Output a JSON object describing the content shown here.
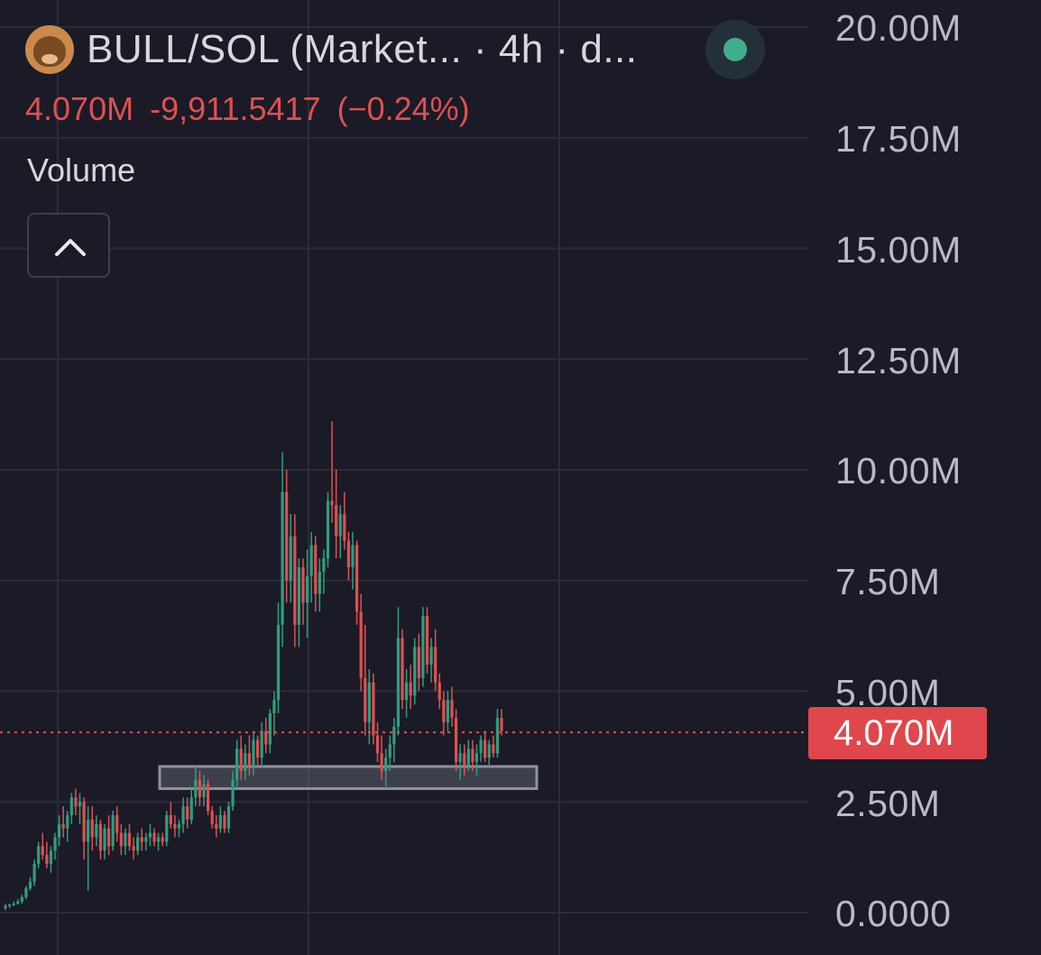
{
  "header": {
    "title": "BULL/SOL (Market... · 4h · d...",
    "logo_icon": "bull-logo-icon",
    "status_color": "#3fae8a"
  },
  "price": {
    "current": "4.070M",
    "change": "-9,911.5417",
    "change_pct": "(−0.24%)",
    "color": "#e04f52"
  },
  "indicator": {
    "label": "Volume",
    "collapse_icon": "chevron-up-icon"
  },
  "last_price_tag": "4.070M",
  "chart_data": {
    "type": "candlestick",
    "interval": "4h",
    "ylim": [
      0,
      20000000
    ],
    "y_ticks": [
      "20.00M",
      "17.50M",
      "15.00M",
      "12.50M",
      "10.00M",
      "7.50M",
      "5.00M",
      "2.50M",
      "0.0000"
    ],
    "last_price": 4070000,
    "colors": {
      "up": "#2e9e7f",
      "down": "#e04f52",
      "grid": "#2a2c38"
    },
    "annotation": {
      "type": "rectangle",
      "low": 2800000,
      "high": 3300000
    },
    "ohlc": [
      [
        0.1,
        0.2,
        0.05,
        0.15
      ],
      [
        0.15,
        0.2,
        0.1,
        0.18
      ],
      [
        0.18,
        0.25,
        0.15,
        0.2
      ],
      [
        0.2,
        0.3,
        0.18,
        0.25
      ],
      [
        0.25,
        0.4,
        0.2,
        0.35
      ],
      [
        0.35,
        0.6,
        0.3,
        0.55
      ],
      [
        0.55,
        0.8,
        0.5,
        0.7
      ],
      [
        0.7,
        1.2,
        0.6,
        1.1
      ],
      [
        1.1,
        1.6,
        1.0,
        1.5
      ],
      [
        1.5,
        1.8,
        1.2,
        1.3
      ],
      [
        1.3,
        1.6,
        1.0,
        1.1
      ],
      [
        1.1,
        1.5,
        0.9,
        1.4
      ],
      [
        1.4,
        1.8,
        1.2,
        1.7
      ],
      [
        1.7,
        2.2,
        1.5,
        2.0
      ],
      [
        2.0,
        2.4,
        1.7,
        1.9
      ],
      [
        1.9,
        2.3,
        1.6,
        2.2
      ],
      [
        2.2,
        2.7,
        2.0,
        2.6
      ],
      [
        2.6,
        2.8,
        2.2,
        2.4
      ],
      [
        2.4,
        2.7,
        2.0,
        2.5
      ],
      [
        2.5,
        2.6,
        1.2,
        1.6
      ],
      [
        1.6,
        2.4,
        0.5,
        2.1
      ],
      [
        2.1,
        2.4,
        1.4,
        1.7
      ],
      [
        1.7,
        2.2,
        1.5,
        2.0
      ],
      [
        2.0,
        2.1,
        1.2,
        1.4
      ],
      [
        1.4,
        2.0,
        1.2,
        1.9
      ],
      [
        1.9,
        2.2,
        1.3,
        1.5
      ],
      [
        1.5,
        2.3,
        1.4,
        2.2
      ],
      [
        2.2,
        2.4,
        1.6,
        1.8
      ],
      [
        1.8,
        2.0,
        1.3,
        1.5
      ],
      [
        1.5,
        1.9,
        1.3,
        1.8
      ],
      [
        1.8,
        2.0,
        1.4,
        1.5
      ],
      [
        1.5,
        1.7,
        1.2,
        1.4
      ],
      [
        1.4,
        1.8,
        1.3,
        1.7
      ],
      [
        1.7,
        1.9,
        1.4,
        1.6
      ],
      [
        1.6,
        1.8,
        1.4,
        1.7
      ],
      [
        1.7,
        2.0,
        1.5,
        1.8
      ],
      [
        1.8,
        1.9,
        1.5,
        1.6
      ],
      [
        1.6,
        1.8,
        1.4,
        1.7
      ],
      [
        1.7,
        1.8,
        1.5,
        1.6
      ],
      [
        1.6,
        2.3,
        1.5,
        2.2
      ],
      [
        2.2,
        2.5,
        1.9,
        2.0
      ],
      [
        2.0,
        2.2,
        1.7,
        1.9
      ],
      [
        1.9,
        2.1,
        1.7,
        2.0
      ],
      [
        2.0,
        2.6,
        1.8,
        2.4
      ],
      [
        2.4,
        2.6,
        1.9,
        2.1
      ],
      [
        2.1,
        2.8,
        2.0,
        2.6
      ],
      [
        2.6,
        3.3,
        2.4,
        3.0
      ],
      [
        3.0,
        3.2,
        2.4,
        2.6
      ],
      [
        2.6,
        3.1,
        2.4,
        2.9
      ],
      [
        2.9,
        3.0,
        2.2,
        2.3
      ],
      [
        2.3,
        2.4,
        1.9,
        2.0
      ],
      [
        2.0,
        2.2,
        1.7,
        1.9
      ],
      [
        1.9,
        2.4,
        1.8,
        2.2
      ],
      [
        2.2,
        2.3,
        1.8,
        1.9
      ],
      [
        1.9,
        2.5,
        1.8,
        2.4
      ],
      [
        2.4,
        3.2,
        2.3,
        3.0
      ],
      [
        3.0,
        3.9,
        2.8,
        3.7
      ],
      [
        3.7,
        4.0,
        3.0,
        3.2
      ],
      [
        3.2,
        3.8,
        3.0,
        3.6
      ],
      [
        3.6,
        4.0,
        3.1,
        3.3
      ],
      [
        3.3,
        4.1,
        3.1,
        3.9
      ],
      [
        3.9,
        4.0,
        3.3,
        3.5
      ],
      [
        3.5,
        4.3,
        3.3,
        4.1
      ],
      [
        4.1,
        4.4,
        3.6,
        3.8
      ],
      [
        3.8,
        4.6,
        3.6,
        4.5
      ],
      [
        4.5,
        5.0,
        4.0,
        4.8
      ],
      [
        4.8,
        7.0,
        4.5,
        6.5
      ],
      [
        6.5,
        10.4,
        6.0,
        9.5
      ],
      [
        9.5,
        10.0,
        7.0,
        7.5
      ],
      [
        7.5,
        9.0,
        7.0,
        8.5
      ],
      [
        8.5,
        9.0,
        6.0,
        6.5
      ],
      [
        6.5,
        8.0,
        6.0,
        7.8
      ],
      [
        7.8,
        8.0,
        6.5,
        7.0
      ],
      [
        7.0,
        8.2,
        6.2,
        7.6
      ],
      [
        7.6,
        8.6,
        7.0,
        8.3
      ],
      [
        8.3,
        8.5,
        6.8,
        7.2
      ],
      [
        7.2,
        8.0,
        6.8,
        7.7
      ],
      [
        7.7,
        8.2,
        7.2,
        8.0
      ],
      [
        8.0,
        9.5,
        7.8,
        9.3
      ],
      [
        9.3,
        11.1,
        8.8,
        9.2
      ],
      [
        9.2,
        10.0,
        8.0,
        8.5
      ],
      [
        8.5,
        9.2,
        8.0,
        9.0
      ],
      [
        9.0,
        9.5,
        8.2,
        8.4
      ],
      [
        8.4,
        8.6,
        7.5,
        7.8
      ],
      [
        7.8,
        8.6,
        7.3,
        8.3
      ],
      [
        8.3,
        8.4,
        6.5,
        6.8
      ],
      [
        6.8,
        7.2,
        5.0,
        5.3
      ],
      [
        5.3,
        6.5,
        4.0,
        4.3
      ],
      [
        4.3,
        5.5,
        3.8,
        5.2
      ],
      [
        5.2,
        5.4,
        3.8,
        4.0
      ],
      [
        4.0,
        4.3,
        3.4,
        3.6
      ],
      [
        3.6,
        4.0,
        3.0,
        3.2
      ],
      [
        3.2,
        3.7,
        2.8,
        3.5
      ],
      [
        3.5,
        4.0,
        3.2,
        3.8
      ],
      [
        3.8,
        4.4,
        3.4,
        4.2
      ],
      [
        4.2,
        6.9,
        4.0,
        6.2
      ],
      [
        6.2,
        6.4,
        4.6,
        4.8
      ],
      [
        4.8,
        5.5,
        4.4,
        5.2
      ],
      [
        5.2,
        5.6,
        4.6,
        4.9
      ],
      [
        4.9,
        6.2,
        4.7,
        6.0
      ],
      [
        6.0,
        6.3,
        5.0,
        5.3
      ],
      [
        5.3,
        6.9,
        5.1,
        6.7
      ],
      [
        6.7,
        6.9,
        5.4,
        5.6
      ],
      [
        5.6,
        6.2,
        5.2,
        6.0
      ],
      [
        6.0,
        6.4,
        5.0,
        5.2
      ],
      [
        5.2,
        5.4,
        4.6,
        4.8
      ],
      [
        4.8,
        5.0,
        4.0,
        4.3
      ],
      [
        4.3,
        5.0,
        4.1,
        4.8
      ],
      [
        4.8,
        5.1,
        4.2,
        4.4
      ],
      [
        4.4,
        4.6,
        3.2,
        3.4
      ],
      [
        3.4,
        3.8,
        3.0,
        3.6
      ],
      [
        3.6,
        3.8,
        3.1,
        3.3
      ],
      [
        3.3,
        3.9,
        3.2,
        3.7
      ],
      [
        3.7,
        3.9,
        3.2,
        3.4
      ],
      [
        3.4,
        3.8,
        3.1,
        3.6
      ],
      [
        3.6,
        4.0,
        3.4,
        3.9
      ],
      [
        3.9,
        4.1,
        3.4,
        3.5
      ],
      [
        3.5,
        3.9,
        3.3,
        3.8
      ],
      [
        3.8,
        4.0,
        3.5,
        3.6
      ],
      [
        3.6,
        4.6,
        3.5,
        4.4
      ],
      [
        4.4,
        4.6,
        4.0,
        4.1
      ]
    ]
  }
}
